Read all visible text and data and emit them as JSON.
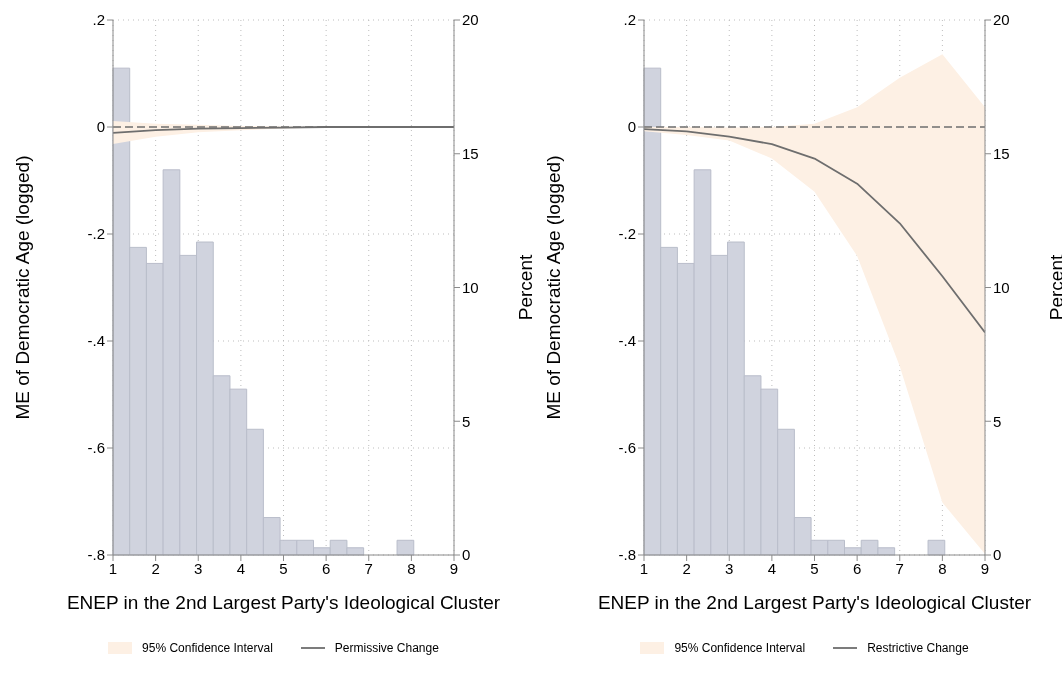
{
  "chart_data": [
    {
      "type": "line",
      "xlabel": "ENEP in the 2nd Largest Party's Ideological Cluster",
      "ylabel": "ME of Democratic Age (logged)",
      "y2label": "Percent",
      "xlim": [
        1,
        9
      ],
      "xticks": [
        1,
        2,
        3,
        4,
        5,
        6,
        7,
        8,
        9
      ],
      "ylim": [
        -0.8,
        0.2
      ],
      "yticks": [
        {
          "value": 0.2,
          "label": ".2"
        },
        0,
        {
          "value": -0.2,
          "label": "-.2"
        },
        {
          "value": -0.4,
          "label": "-.4"
        },
        {
          "value": -0.6,
          "label": "-.6"
        },
        {
          "value": -0.8,
          "label": "-.8"
        }
      ],
      "y2lim": [
        0,
        20
      ],
      "y2ticks": [
        0,
        5,
        10,
        15,
        20
      ],
      "grid": true,
      "legend": "bottom",
      "line_style": "solid",
      "marker": "none",
      "annotations": [
        "95% Confidence Interval"
      ],
      "ref_lines": [
        {
          "axis": "y",
          "value": 0,
          "color": "#6e6e6e",
          "line_style": "dashed"
        }
      ],
      "series": [
        {
          "type": "histogram",
          "axis": "y2",
          "color": "#d0d3de",
          "bins": [
            1,
            1.392,
            1.784,
            2.176,
            2.568,
            2.96,
            3.352,
            3.744,
            4.136,
            4.528,
            4.92,
            5.312,
            5.704,
            6.096,
            6.488,
            6.88,
            7.272,
            7.664,
            8.056
          ],
          "values": [
            18.2,
            11.5,
            10.9,
            14.4,
            11.2,
            11.7,
            6.7,
            6.2,
            4.7,
            1.4,
            0.55,
            0.55,
            0.27,
            0.55,
            0.27,
            0,
            0,
            0.55
          ]
        },
        {
          "type": "line",
          "name": "Permissive Change",
          "color": "#6e6e6e",
          "x": [
            1,
            2,
            3,
            4,
            5,
            6,
            7,
            8,
            9
          ],
          "values": [
            -0.011,
            -0.006,
            -0.003,
            -0.002,
            -0.001,
            0,
            0,
            0,
            0
          ],
          "lower": [
            -0.032,
            -0.018,
            -0.01,
            -0.006,
            -0.003,
            -0.001,
            0,
            0,
            0
          ],
          "upper": [
            0.011,
            0.006,
            0.004,
            0.002,
            0.001,
            0,
            0,
            0,
            0
          ]
        }
      ]
    },
    {
      "type": "line",
      "xlabel": "ENEP in the 2nd Largest Party's Ideological Cluster",
      "ylabel": "ME of Democratic Age (logged)",
      "y2label": "Percent",
      "xlim": [
        1,
        9
      ],
      "xticks": [
        1,
        2,
        3,
        4,
        5,
        6,
        7,
        8,
        9
      ],
      "ylim": [
        -0.8,
        0.2
      ],
      "yticks": [
        {
          "value": 0.2,
          "label": ".2"
        },
        0,
        {
          "value": -0.2,
          "label": "-.2"
        },
        {
          "value": -0.4,
          "label": "-.4"
        },
        {
          "value": -0.6,
          "label": "-.6"
        },
        {
          "value": -0.8,
          "label": "-.8"
        }
      ],
      "y2lim": [
        0,
        20
      ],
      "y2ticks": [
        0,
        5,
        10,
        15,
        20
      ],
      "grid": true,
      "legend": "bottom",
      "line_style": "solid",
      "marker": "none",
      "annotations": [
        "95% Confidence Interval"
      ],
      "ref_lines": [
        {
          "axis": "y",
          "value": 0,
          "color": "#6e6e6e",
          "line_style": "dashed"
        }
      ],
      "series": [
        {
          "type": "histogram",
          "axis": "y2",
          "color": "#d0d3de",
          "bins": [
            1,
            1.392,
            1.784,
            2.176,
            2.568,
            2.96,
            3.352,
            3.744,
            4.136,
            4.528,
            4.92,
            5.312,
            5.704,
            6.096,
            6.488,
            6.88,
            7.272,
            7.664,
            8.056
          ],
          "values": [
            18.2,
            11.5,
            10.9,
            14.4,
            11.2,
            11.7,
            6.7,
            6.2,
            4.7,
            1.4,
            0.55,
            0.55,
            0.27,
            0.55,
            0.27,
            0,
            0,
            0.55
          ]
        },
        {
          "type": "line",
          "name": "Restrictive Change",
          "color": "#6e6e6e",
          "x": [
            1,
            2,
            3,
            4,
            5,
            6,
            7,
            8,
            9
          ],
          "values": [
            -0.004,
            -0.008,
            -0.018,
            -0.032,
            -0.059,
            -0.106,
            -0.18,
            -0.279,
            -0.384
          ],
          "lower": [
            -0.008,
            -0.015,
            -0.025,
            -0.059,
            -0.121,
            -0.241,
            -0.447,
            -0.702,
            -0.798
          ],
          "upper": [
            0,
            0,
            -0.001,
            0,
            0.006,
            0.037,
            0.092,
            0.136,
            0.037
          ]
        }
      ]
    }
  ]
}
